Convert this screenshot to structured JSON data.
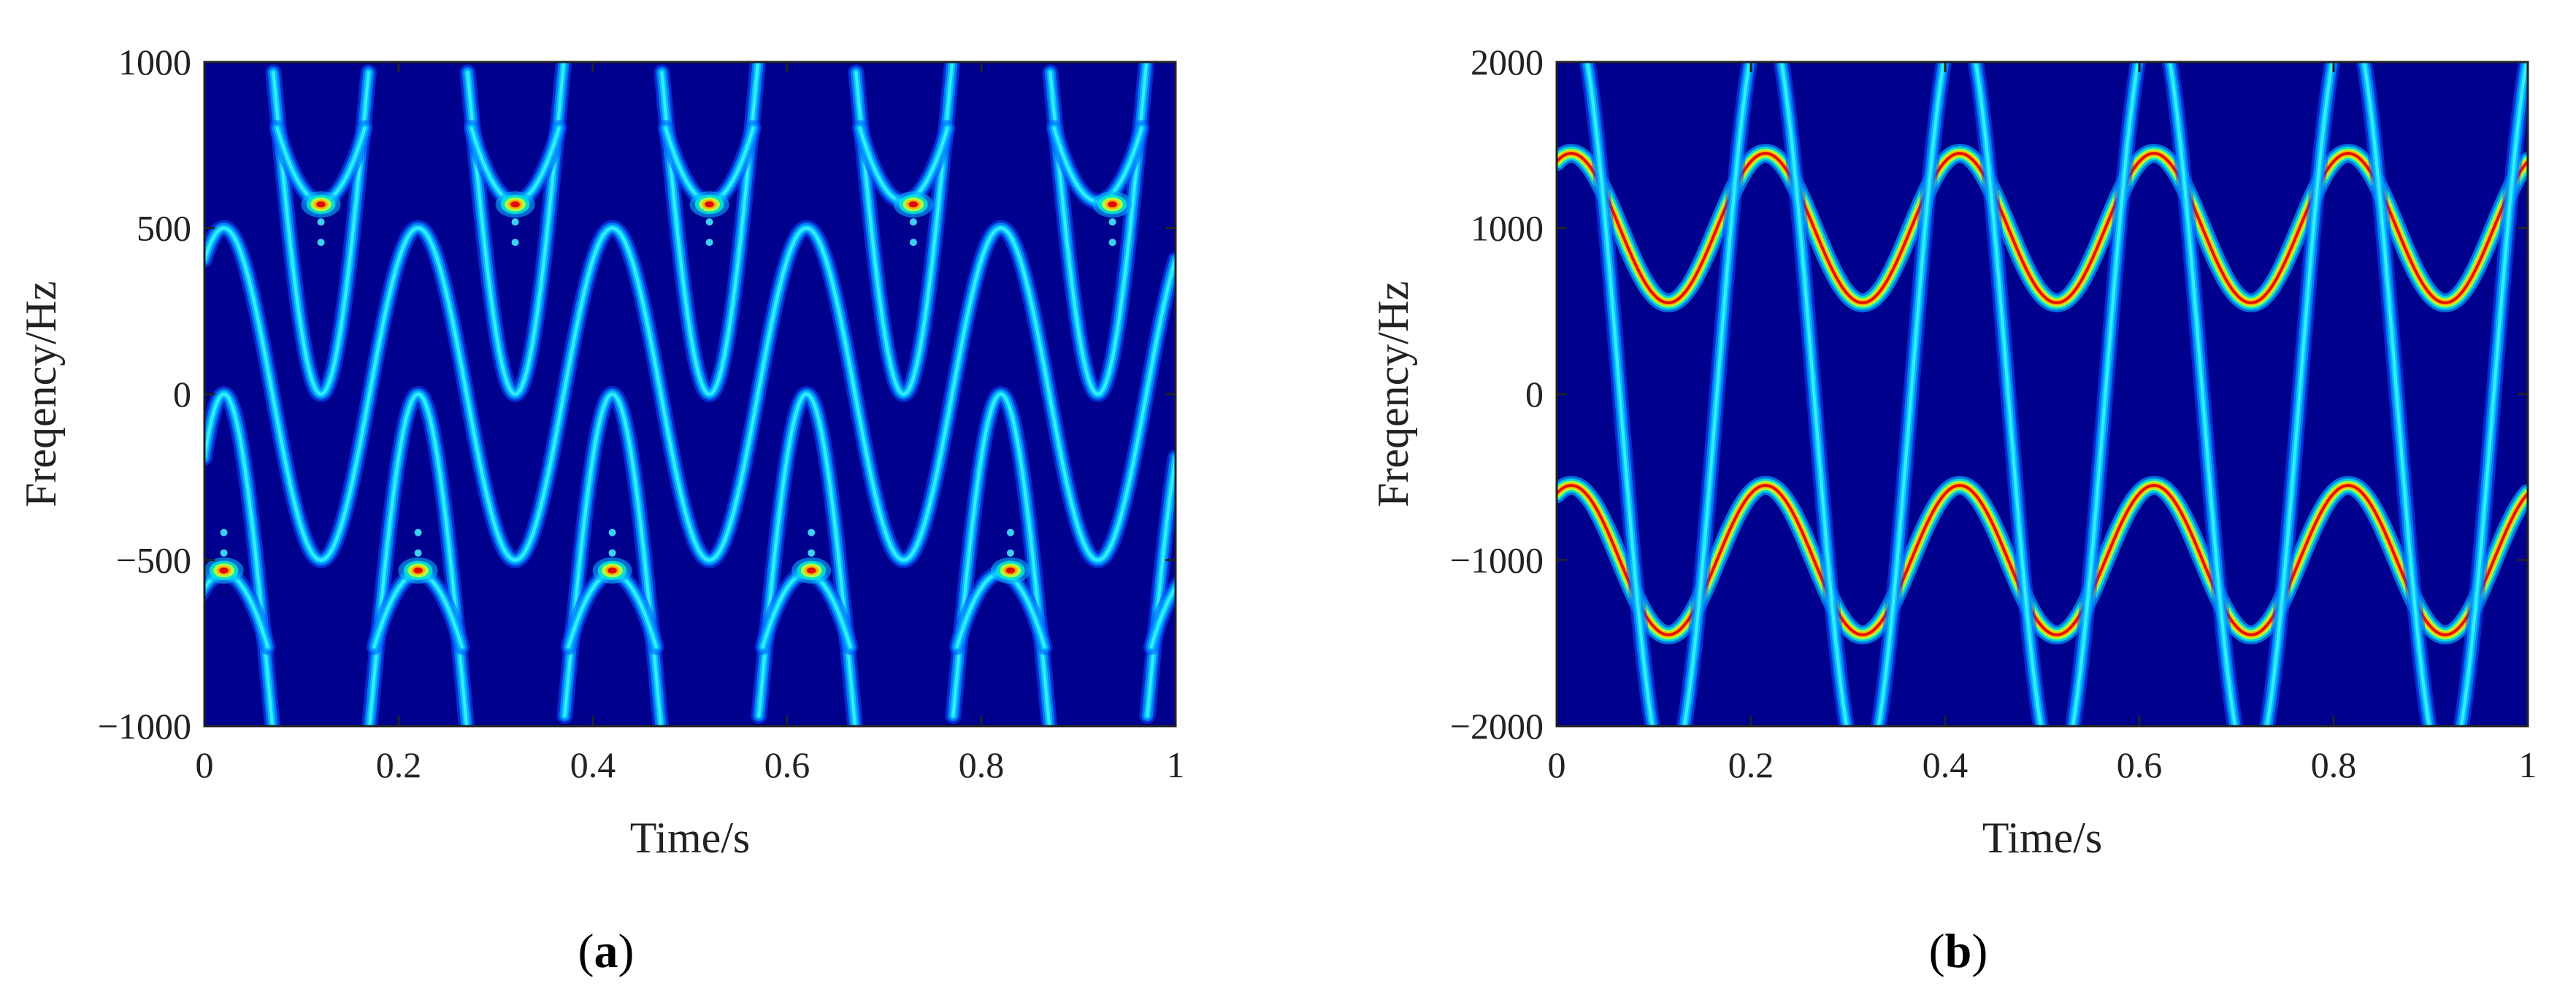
{
  "chart_data": [
    {
      "type": "heatmap",
      "panel_label": "a",
      "xlabel": "Time/s",
      "ylabel": "Freqency/Hz",
      "xlim": [
        0,
        1
      ],
      "ylim": [
        -1000,
        1000
      ],
      "xticks": [
        "0",
        "0.2",
        "0.4",
        "0.6",
        "0.8",
        "1"
      ],
      "yticks": [
        "-1000",
        "-500",
        "0",
        "500",
        "1000"
      ],
      "colormap": "jet",
      "background_color": "#00008f",
      "components": [
        {
          "kind": "sinusoidal-ridge",
          "center_hz": 1000,
          "amplitude_hz": 1000,
          "period_s": 0.2,
          "phase_s": 0.02,
          "aliased": true,
          "peak_intensity": 0.45
        },
        {
          "kind": "sinusoidal-ridge",
          "center_hz": 0,
          "amplitude_hz": 500,
          "period_s": 0.2,
          "phase_s": 0.02,
          "aliased": false,
          "peak_intensity": 0.45,
          "comment": "folded branches"
        },
        {
          "kind": "turning-point-peaks",
          "hz": -540,
          "times_s": [
            0.02,
            0.22,
            0.42,
            0.625,
            0.83
          ],
          "intensity": 1.0
        },
        {
          "kind": "turning-point-peaks",
          "hz": 580,
          "times_s": [
            0.12,
            0.32,
            0.52,
            0.73,
            0.935
          ],
          "intensity": 1.0
        }
      ]
    },
    {
      "type": "heatmap",
      "panel_label": "b",
      "xlabel": "Time/s",
      "ylabel": "Freqency/Hz",
      "xlim": [
        0,
        1
      ],
      "ylim": [
        -2000,
        2000
      ],
      "xticks": [
        "0",
        "0.2",
        "0.4",
        "0.6",
        "0.8",
        "1"
      ],
      "yticks": [
        "-2000",
        "-1000",
        "0",
        "1000",
        "2000"
      ],
      "colormap": "jet",
      "background_color": "#00008f",
      "components": [
        {
          "kind": "sinusoidal-ridge",
          "center_hz": 1000,
          "amplitude_hz": 450,
          "period_s": 0.2,
          "phase_s": 0.015,
          "intensity": 1.0
        },
        {
          "kind": "sinusoidal-ridge",
          "center_hz": -1000,
          "amplitude_hz": 450,
          "period_s": 0.2,
          "phase_s": 0.015,
          "intensity": 1.0
        },
        {
          "kind": "sinusoidal-ridge",
          "center_hz": 0,
          "amplitude_hz": 2300,
          "period_s": 0.2,
          "phase_s": 0.015,
          "intensity": 0.5,
          "clipped": true
        }
      ]
    }
  ]
}
